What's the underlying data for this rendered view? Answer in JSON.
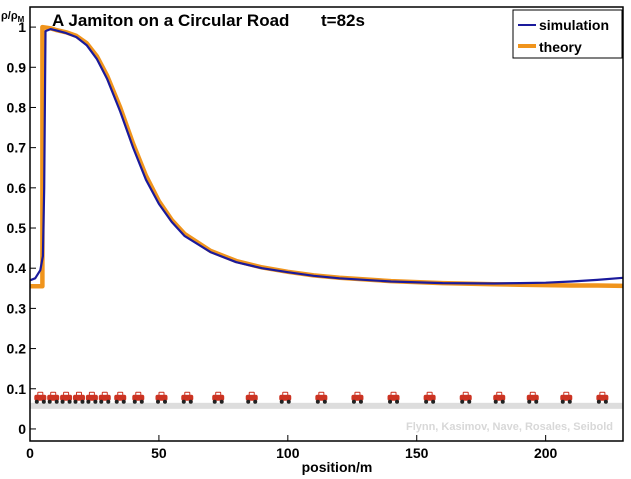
{
  "chart_data": {
    "type": "line",
    "title": "A  Jamiton on a Circular Road",
    "time_label": "t=82s",
    "xlabel": "position/m",
    "ylabel": "ρ/ρ",
    "ylabel_sub": "M",
    "xlim": [
      0,
      230
    ],
    "ylim": [
      -0.03,
      1.05
    ],
    "xticks": [
      0,
      50,
      100,
      150,
      200
    ],
    "yticks": [
      0,
      0.1,
      0.2,
      0.3,
      0.4,
      0.5,
      0.6,
      0.7,
      0.8,
      0.9,
      1
    ],
    "legend_position": "top-right",
    "grid": false,
    "series": [
      {
        "name": "simulation",
        "color": "#1a1a9c",
        "x": [
          0,
          2,
          4,
          5,
          5.5,
          6,
          8,
          10,
          14,
          18,
          22,
          26,
          30,
          35,
          40,
          45,
          50,
          55,
          60,
          70,
          80,
          90,
          100,
          110,
          120,
          140,
          160,
          180,
          190,
          200,
          210,
          220,
          230
        ],
        "y": [
          0.37,
          0.375,
          0.395,
          0.43,
          0.6,
          0.99,
          0.995,
          0.992,
          0.985,
          0.975,
          0.955,
          0.92,
          0.87,
          0.79,
          0.7,
          0.62,
          0.56,
          0.515,
          0.48,
          0.44,
          0.415,
          0.4,
          0.39,
          0.381,
          0.375,
          0.367,
          0.363,
          0.362,
          0.363,
          0.364,
          0.367,
          0.371,
          0.376
        ]
      },
      {
        "name": "theory",
        "color": "#f0941c",
        "x": [
          0,
          4.8,
          4.8,
          8,
          10,
          14,
          18,
          22,
          26,
          30,
          35,
          40,
          45,
          50,
          55,
          60,
          70,
          80,
          90,
          100,
          110,
          120,
          140,
          160,
          180,
          190,
          200,
          210,
          220,
          230
        ],
        "y": [
          0.355,
          0.355,
          1.0,
          0.997,
          0.993,
          0.987,
          0.978,
          0.96,
          0.927,
          0.878,
          0.8,
          0.71,
          0.63,
          0.567,
          0.52,
          0.485,
          0.443,
          0.418,
          0.402,
          0.391,
          0.382,
          0.376,
          0.368,
          0.363,
          0.36,
          0.359,
          0.358,
          0.357,
          0.357,
          0.356
        ]
      }
    ],
    "cars": {
      "y": 0.075,
      "color": "#cc3322",
      "x": [
        4,
        9,
        14,
        19,
        24,
        29,
        35,
        42,
        51,
        61,
        73,
        86,
        99,
        113,
        127,
        141,
        155,
        169,
        182,
        195,
        208,
        222
      ]
    },
    "road": {
      "y_top": 0.065,
      "y_bottom": 0.05,
      "color": "#dddddd"
    },
    "credit": "Flynn, Kasimov, Nave, Rosales, Seibold"
  }
}
